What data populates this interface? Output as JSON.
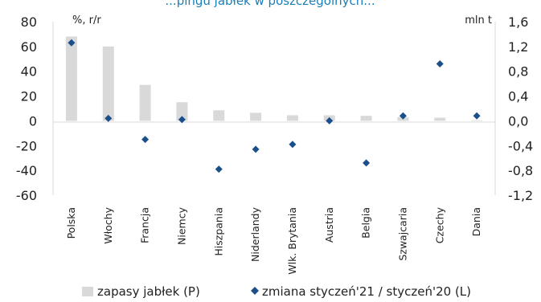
{
  "title": "...pingu jabłek w poszczególnych...",
  "chart_data": {
    "type": "bar",
    "categories": [
      "Polska",
      "Włochy",
      "Francja",
      "Niemcy",
      "Hiszpania",
      "Niderlandy",
      "Wlk. Brytania",
      "Austria",
      "Belgia",
      "Szwajcaria",
      "Czechy",
      "Dania"
    ],
    "series": [
      {
        "name": "zapasy jabłek (P)",
        "type": "bar",
        "axis": "right",
        "color": "#d9d9d9",
        "values": [
          1.36,
          1.2,
          0.58,
          0.3,
          0.17,
          0.13,
          0.09,
          0.09,
          0.08,
          0.06,
          0.05,
          0.01
        ]
      },
      {
        "name": "zmiana styczeń'21 / styczeń'20 (L)",
        "type": "scatter",
        "axis": "left",
        "color": "#1a4f8a",
        "marker": "diamond",
        "values": [
          63,
          2,
          -15,
          1,
          -39,
          -23,
          -19,
          0,
          -34,
          4,
          46,
          4
        ]
      }
    ],
    "left_axis": {
      "label": "%, r/r",
      "ylim": [
        -60,
        80
      ],
      "ticks": [
        "80",
        "60",
        "40",
        "20",
        "0",
        "-20",
        "-40",
        "-60"
      ]
    },
    "right_axis": {
      "label": "mln t",
      "ylim": [
        -1.2,
        1.6
      ],
      "ticks": [
        "1,6",
        "1,2",
        "0,8",
        "0,4",
        "0,0",
        "-0,4",
        "-0,8",
        "-1,2"
      ]
    },
    "grid": false,
    "legend_position": "bottom"
  }
}
